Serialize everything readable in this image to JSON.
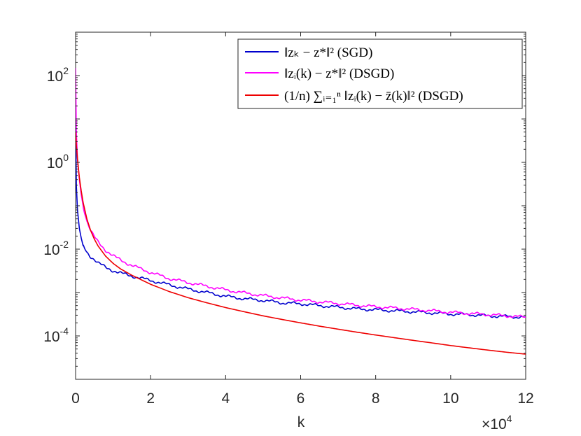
{
  "chart_data": {
    "type": "line",
    "title": "",
    "xlabel": "k",
    "ylabel": "",
    "x_multiplier_label": "×10",
    "x_multiplier_exponent": "4",
    "xlim": [
      0,
      120000
    ],
    "ylim": [
      1e-05,
      1000
    ],
    "yscale": "log",
    "grid": false,
    "legend_position": "top-right",
    "x_ticks": [
      {
        "value": 0,
        "label": "0"
      },
      {
        "value": 20000,
        "label": "2"
      },
      {
        "value": 40000,
        "label": "4"
      },
      {
        "value": 60000,
        "label": "6"
      },
      {
        "value": 80000,
        "label": "8"
      },
      {
        "value": 100000,
        "label": "10"
      },
      {
        "value": 120000,
        "label": "12"
      }
    ],
    "y_ticks": [
      {
        "value": 0.0001,
        "base": "10",
        "exp": "-4"
      },
      {
        "value": 0.01,
        "base": "10",
        "exp": "-2"
      },
      {
        "value": 1,
        "base": "10",
        "exp": "0"
      },
      {
        "value": 100,
        "base": "10",
        "exp": "2"
      }
    ],
    "series": [
      {
        "name": "‖zₖ − z*‖² (SGD)",
        "color": "#0000cd",
        "x": [
          0,
          200,
          500,
          1000,
          1500,
          2000,
          3000,
          4000,
          5000,
          6000,
          8000,
          10000,
          12000,
          15000,
          20000,
          25000,
          30000,
          35000,
          40000,
          45000,
          50000,
          55000,
          60000,
          65000,
          70000,
          75000,
          80000,
          85000,
          90000,
          95000,
          100000,
          105000,
          110000,
          115000,
          120000
        ],
        "y": [
          10,
          0.3,
          0.08,
          0.03,
          0.018,
          0.012,
          0.0085,
          0.0068,
          0.0058,
          0.0048,
          0.0038,
          0.0032,
          0.0028,
          0.0024,
          0.0019,
          0.0015,
          0.0012,
          0.001,
          0.00082,
          0.00072,
          0.00066,
          0.00058,
          0.00055,
          0.0005,
          0.00046,
          0.00042,
          0.0004,
          0.00038,
          0.00036,
          0.00034,
          0.00032,
          0.00031,
          0.00029,
          0.00028,
          0.00027
        ]
      },
      {
        "name": "‖zᵢ(k) − z*‖² (DSGD)",
        "color": "#ff00ff",
        "x": [
          0,
          200,
          500,
          1000,
          1500,
          2000,
          3000,
          4000,
          5000,
          6000,
          8000,
          10000,
          12000,
          15000,
          20000,
          25000,
          30000,
          35000,
          40000,
          45000,
          50000,
          55000,
          60000,
          65000,
          70000,
          75000,
          80000,
          85000,
          90000,
          95000,
          100000,
          105000,
          110000,
          115000,
          120000
        ],
        "y": [
          150,
          5,
          1.2,
          0.4,
          0.18,
          0.1,
          0.045,
          0.027,
          0.019,
          0.0145,
          0.0095,
          0.007,
          0.0056,
          0.0042,
          0.0029,
          0.0021,
          0.0017,
          0.0014,
          0.00115,
          0.00098,
          0.00085,
          0.00075,
          0.00067,
          0.00061,
          0.00056,
          0.00051,
          0.00047,
          0.00044,
          0.00041,
          0.00038,
          0.00035,
          0.00033,
          0.00031,
          0.00029,
          0.00027
        ]
      },
      {
        "name": "(1/n) ∑ᵢ₌₁ⁿ ‖zᵢ(k) − z̄(k)‖² (DSGD)",
        "color": "#ee0000",
        "x": [
          0,
          200,
          500,
          1000,
          1500,
          2000,
          3000,
          4000,
          5000,
          6000,
          8000,
          10000,
          12000,
          15000,
          20000,
          25000,
          30000,
          35000,
          40000,
          45000,
          50000,
          55000,
          60000,
          65000,
          70000,
          75000,
          80000,
          85000,
          90000,
          95000,
          100000,
          105000,
          110000,
          115000,
          120000
        ],
        "y": [
          5,
          2.5,
          1.2,
          0.45,
          0.22,
          0.12,
          0.05,
          0.027,
          0.017,
          0.0118,
          0.0069,
          0.0047,
          0.0035,
          0.0025,
          0.00155,
          0.00105,
          0.00076,
          0.00058,
          0.00045,
          0.00036,
          0.00029,
          0.00024,
          0.0002,
          0.000168,
          0.000143,
          0.000122,
          0.000105,
          9.1e-05,
          7.9e-05,
          6.9e-05,
          6e-05,
          5.3e-05,
          4.7e-05,
          4.2e-05,
          3.8e-05
        ]
      }
    ]
  }
}
